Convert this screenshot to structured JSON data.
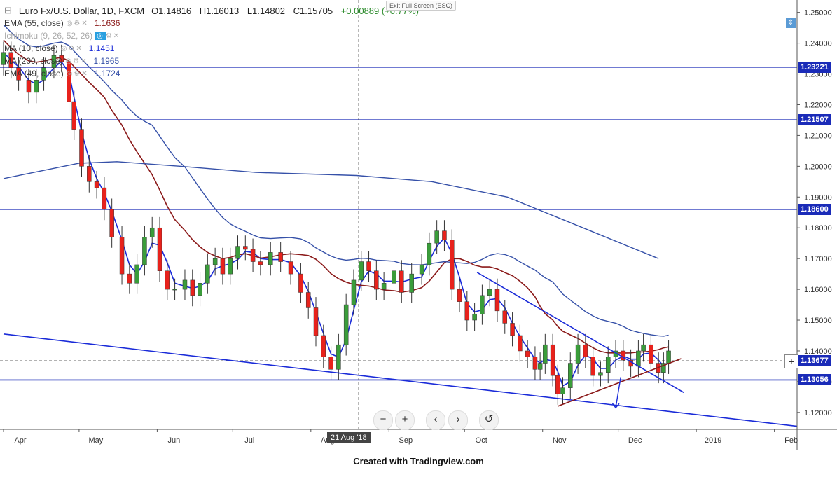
{
  "header": {
    "symbol_title": "Euro Fx/U.S. Dollar, 1D, FXCM",
    "open": "O1.14816",
    "high": "H1.16013",
    "low": "L1.14802",
    "close": "C1.15705",
    "change": "+0.00889 (+0.77%)",
    "exit_fullscreen": "Exit Full Screen (ESC)"
  },
  "indicators": [
    {
      "label": "EMA (55, close)",
      "value": "1.1636",
      "color": "#8b1a1a"
    },
    {
      "label": "Ichimoku (9, 26, 52, 26)",
      "value": "",
      "color": "#2aa0e0"
    },
    {
      "label": "MA (10, close)",
      "value": "1.1451",
      "color": "#1a2bd8"
    },
    {
      "label": "MA (200, close)",
      "value": "1.1965",
      "color": "#3550a8"
    },
    {
      "label": "EMA (49, close)",
      "value": "1.1724",
      "color": "#3550a8"
    }
  ],
  "price_tags": [
    {
      "text": "1.23221",
      "value": 1.23221
    },
    {
      "text": "1.21507",
      "value": 1.21507
    },
    {
      "text": "1.18600",
      "value": 1.186
    },
    {
      "text": "1.13677",
      "value": 1.13677
    },
    {
      "text": "1.13056",
      "value": 1.13056
    }
  ],
  "crosshair_date": "21 Aug '18",
  "footer_text": "Created with Tradingview.com",
  "nav_controls": [
    "−",
    "+",
    "‹",
    "›",
    "↺"
  ],
  "chart_data": {
    "type": "candlestick",
    "title": "Euro Fx/U.S. Dollar, 1D, FXCM",
    "x_axis_labels": [
      "Apr",
      "May",
      "Jun",
      "Jul",
      "Aug",
      "Sep",
      "Oct",
      "Nov",
      "Dec",
      "2019",
      "Feb"
    ],
    "y_axis_labels": [
      "1.25000",
      "1.24000",
      "1.23000",
      "1.22000",
      "1.21000",
      "1.20000",
      "1.19000",
      "1.18000",
      "1.17000",
      "1.16000",
      "1.15000",
      "1.14000",
      "1.13000",
      "1.12000"
    ],
    "ylim": [
      1.1145,
      1.2522
    ],
    "x_range_days": [
      0,
      315
    ],
    "month_starts_days": [
      0,
      30,
      61,
      91,
      122,
      153,
      183,
      214,
      244,
      275,
      306
    ],
    "horizontal_levels": [
      1.23221,
      1.21507,
      1.186,
      1.13056
    ],
    "current_price_dashed": 1.13677,
    "up_color": "#3a9d3a",
    "down_color": "#e8221c",
    "candles_approx_closes": [
      [
        0,
        1.237
      ],
      [
        3,
        1.232
      ],
      [
        6,
        1.228
      ],
      [
        10,
        1.224
      ],
      [
        13,
        1.228
      ],
      [
        16,
        1.232
      ],
      [
        20,
        1.236
      ],
      [
        23,
        1.234
      ],
      [
        26,
        1.221
      ],
      [
        28,
        1.212
      ],
      [
        31,
        1.2
      ],
      [
        34,
        1.195
      ],
      [
        37,
        1.193
      ],
      [
        40,
        1.186
      ],
      [
        43,
        1.177
      ],
      [
        47,
        1.165
      ],
      [
        50,
        1.162
      ],
      [
        53,
        1.168
      ],
      [
        56,
        1.177
      ],
      [
        59,
        1.18
      ],
      [
        62,
        1.166
      ],
      [
        65,
        1.16
      ],
      [
        68,
        1.16
      ],
      [
        72,
        1.163
      ],
      [
        75,
        1.158
      ],
      [
        78,
        1.162
      ],
      [
        81,
        1.168
      ],
      [
        84,
        1.17
      ],
      [
        87,
        1.165
      ],
      [
        90,
        1.17
      ],
      [
        93,
        1.174
      ],
      [
        96,
        1.173
      ],
      [
        99,
        1.169
      ],
      [
        102,
        1.168
      ],
      [
        106,
        1.172
      ],
      [
        110,
        1.169
      ],
      [
        114,
        1.165
      ],
      [
        118,
        1.159
      ],
      [
        121,
        1.154
      ],
      [
        124,
        1.145
      ],
      [
        127,
        1.138
      ],
      [
        130,
        1.134
      ],
      [
        133,
        1.142
      ],
      [
        136,
        1.155
      ],
      [
        139,
        1.163
      ],
      [
        142,
        1.169
      ],
      [
        145,
        1.166
      ],
      [
        148,
        1.16
      ],
      [
        151,
        1.162
      ],
      [
        155,
        1.166
      ],
      [
        158,
        1.159
      ],
      [
        162,
        1.165
      ],
      [
        166,
        1.168
      ],
      [
        169,
        1.175
      ],
      [
        172,
        1.179
      ],
      [
        175,
        1.176
      ],
      [
        178,
        1.16
      ],
      [
        181,
        1.156
      ],
      [
        184,
        1.15
      ],
      [
        187,
        1.152
      ],
      [
        190,
        1.158
      ],
      [
        193,
        1.16
      ],
      [
        196,
        1.153
      ],
      [
        199,
        1.149
      ],
      [
        202,
        1.145
      ],
      [
        205,
        1.14
      ],
      [
        208,
        1.138
      ],
      [
        211,
        1.134
      ],
      [
        213,
        1.136
      ],
      [
        215,
        1.142
      ],
      [
        218,
        1.132
      ],
      [
        220,
        1.126
      ],
      [
        222,
        1.128
      ],
      [
        225,
        1.136
      ],
      [
        228,
        1.142
      ],
      [
        231,
        1.138
      ],
      [
        234,
        1.132
      ],
      [
        237,
        1.133
      ],
      [
        240,
        1.138
      ],
      [
        243,
        1.14
      ],
      [
        246,
        1.137
      ],
      [
        249,
        1.135
      ],
      [
        252,
        1.14
      ],
      [
        254,
        1.142
      ],
      [
        257,
        1.136
      ],
      [
        260,
        1.133
      ],
      [
        262,
        1.136
      ],
      [
        264,
        1.14
      ]
    ]
  }
}
